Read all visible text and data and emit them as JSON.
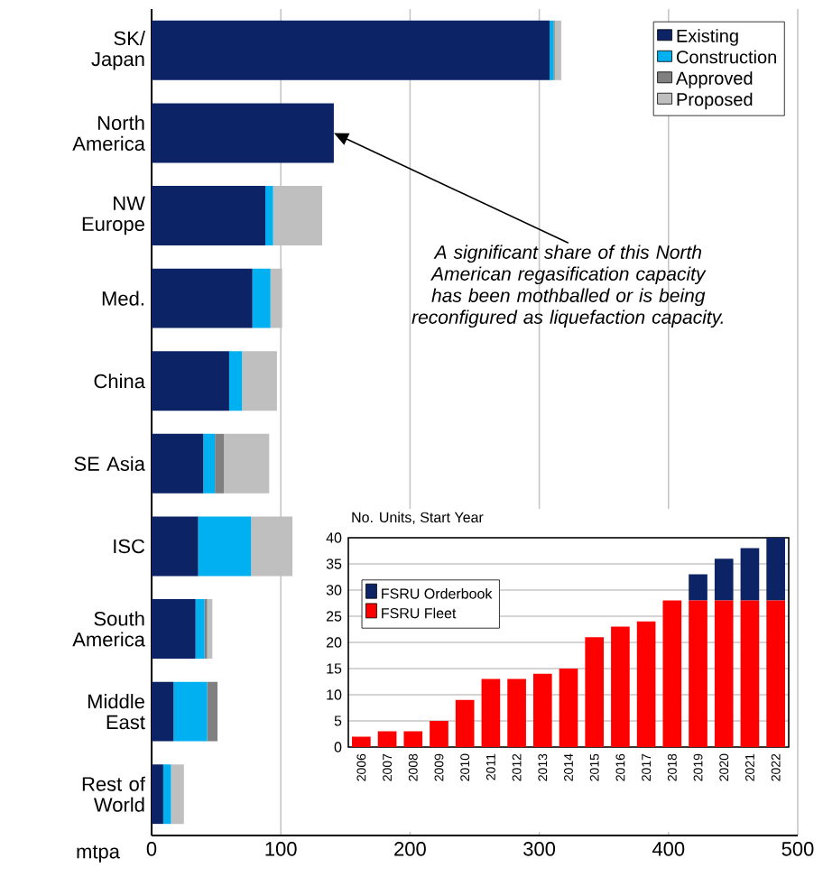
{
  "chart_data": [
    {
      "type": "bar",
      "orientation": "horizontal",
      "stacked": true,
      "xlabel": "mtpa",
      "categories": [
        "SK/ Japan",
        "North America",
        "NW Europe",
        "Med.",
        "China",
        "SE Asia",
        "ISC",
        "South America",
        "Middle East",
        "Rest of World"
      ],
      "series": [
        {
          "name": "Existing",
          "color": "#0c2366",
          "values": [
            308,
            141,
            88,
            78,
            60,
            40,
            36,
            34,
            17,
            9
          ]
        },
        {
          "name": "Construction",
          "color": "#00b0f0",
          "values": [
            3,
            0,
            6,
            14,
            10,
            9,
            41,
            7,
            26,
            6
          ]
        },
        {
          "name": "Approved",
          "color": "#808080",
          "values": [
            1,
            0,
            0,
            0,
            0,
            7,
            0,
            2,
            8,
            0
          ]
        },
        {
          "name": "Proposed",
          "color": "#bfbfbf",
          "values": [
            5,
            0,
            38,
            9,
            27,
            35,
            32,
            4,
            0,
            10
          ]
        }
      ],
      "xlim": [
        0,
        500
      ],
      "xticks": [
        0,
        100,
        200,
        300,
        400,
        500
      ],
      "grid": "x",
      "legend": "top right",
      "annotations": [
        {
          "text": "A significant share of this North American regasification capacity has been mothballed or is being reconfigured as liquefaction capacity.",
          "x": 141,
          "y": "North America"
        }
      ]
    },
    {
      "type": "bar",
      "stacked": true,
      "title": "No. Units, Start Year",
      "categories": [
        "2006",
        "2007",
        "2008",
        "2009",
        "2010",
        "2011",
        "2012",
        "2013",
        "2014",
        "2015",
        "2016",
        "2017",
        "2018",
        "2019",
        "2020",
        "2021",
        "2022"
      ],
      "series": [
        {
          "name": "FSRU Fleet",
          "color": "#ff0000",
          "values": [
            2,
            3,
            3,
            5,
            9,
            13,
            13,
            14,
            15,
            21,
            23,
            24,
            28,
            28,
            28,
            28,
            28
          ]
        },
        {
          "name": "FSRU Orderbook",
          "color": "#0c2366",
          "values": [
            0,
            0,
            0,
            0,
            0,
            0,
            0,
            0,
            0,
            0,
            0,
            0,
            0,
            5,
            8,
            10,
            12
          ]
        }
      ],
      "ylim": [
        0,
        40
      ],
      "yticks": [
        0,
        5,
        10,
        15,
        20,
        25,
        30,
        35,
        40
      ],
      "grid": "y",
      "legend": "top left"
    }
  ]
}
